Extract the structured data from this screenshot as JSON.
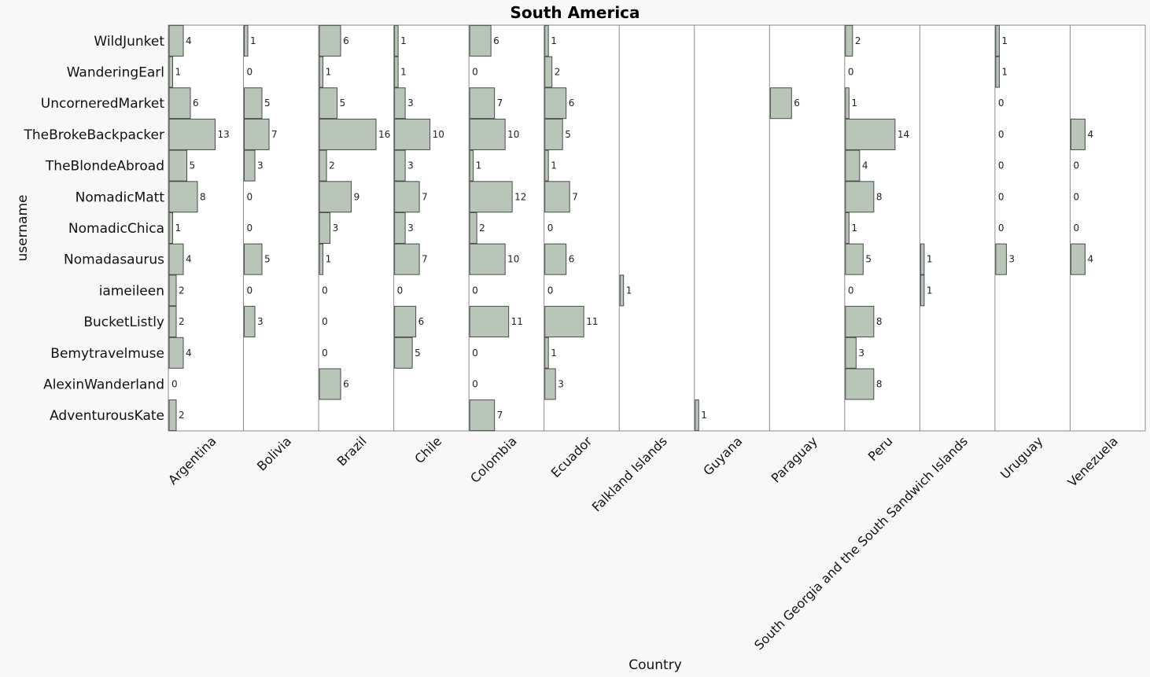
{
  "chart_data": {
    "type": "bar",
    "orientation": "horizontal",
    "layout": "small-multiples",
    "title": "South America",
    "xlabel": "Country",
    "ylabel": "username",
    "bar_color": "#b7c6b7",
    "users": [
      "WildJunket",
      "WanderingEarl",
      "UncorneredMarket",
      "TheBrokeBackpacker",
      "TheBlondeAbroad",
      "NomadicMatt",
      "NomadicChica",
      "Nomadasaurus",
      "iameileen",
      "BucketListly",
      "Bemytravelmuse",
      "AlexinWanderland",
      "AdventurousKate"
    ],
    "countries": [
      "Argentina",
      "Bolivia",
      "Brazil",
      "Chile",
      "Colombia",
      "Ecuador",
      "Falkland Islands",
      "Guyana",
      "Paraguay",
      "Peru",
      "South Georgia and the South Sandwich Islands",
      "Uruguay",
      "Venezuela"
    ],
    "values": [
      [
        4,
        1,
        6,
        1,
        6,
        1,
        null,
        null,
        null,
        2,
        null,
        1,
        null
      ],
      [
        1,
        0,
        1,
        1,
        0,
        2,
        null,
        null,
        null,
        0,
        null,
        1,
        null
      ],
      [
        6,
        5,
        5,
        3,
        7,
        6,
        null,
        null,
        6,
        1,
        null,
        0,
        null
      ],
      [
        13,
        7,
        16,
        10,
        10,
        5,
        null,
        null,
        null,
        14,
        null,
        0,
        4
      ],
      [
        5,
        3,
        2,
        3,
        1,
        1,
        null,
        null,
        null,
        4,
        null,
        0,
        0
      ],
      [
        8,
        0,
        9,
        7,
        12,
        7,
        null,
        null,
        null,
        8,
        null,
        0,
        0
      ],
      [
        1,
        0,
        3,
        3,
        2,
        0,
        null,
        null,
        null,
        1,
        null,
        0,
        0
      ],
      [
        4,
        5,
        1,
        7,
        10,
        6,
        null,
        null,
        null,
        5,
        1,
        3,
        4
      ],
      [
        2,
        0,
        0,
        0,
        0,
        0,
        1,
        null,
        null,
        0,
        1,
        null,
        null
      ],
      [
        2,
        3,
        0,
        6,
        11,
        11,
        null,
        null,
        null,
        8,
        null,
        null,
        null
      ],
      [
        4,
        null,
        0,
        5,
        0,
        1,
        null,
        null,
        null,
        3,
        null,
        null,
        null
      ],
      [
        0,
        null,
        6,
        null,
        0,
        3,
        null,
        null,
        null,
        8,
        null,
        null,
        null
      ],
      [
        2,
        null,
        null,
        null,
        7,
        null,
        null,
        1,
        null,
        null,
        null,
        null,
        null
      ]
    ]
  }
}
